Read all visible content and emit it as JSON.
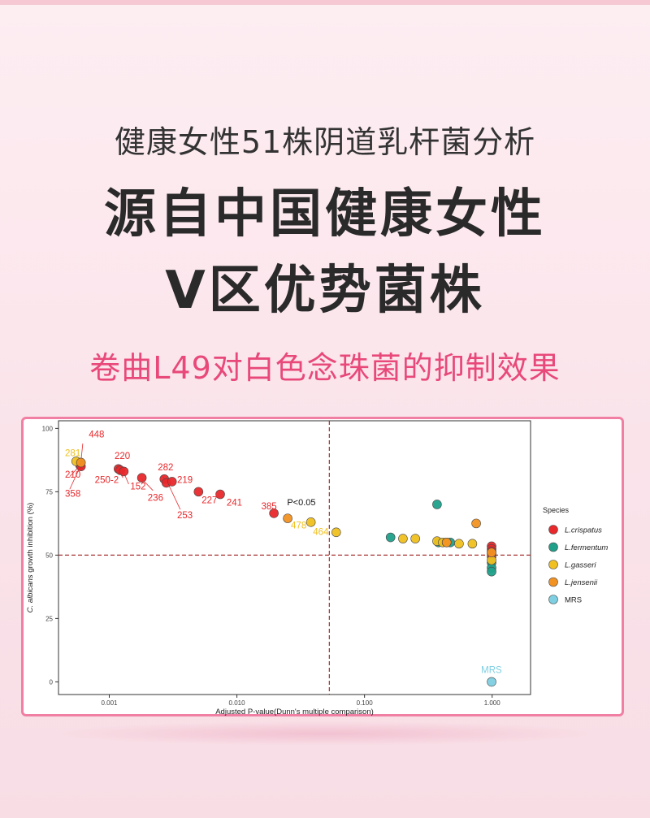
{
  "header": {
    "subtitle": "健康女性51株阴道乳杆菌分析",
    "headline_line1": "源自中国健康女性",
    "headline_line2": "V区优势菌株",
    "tagline": "卷曲L49对白色念珠菌的抑制效果"
  },
  "colors": {
    "L.crispatus": "#e8282b",
    "L.fermentum": "#1fa08a",
    "L.gasseri": "#f0c020",
    "L.jensenii": "#f29222",
    "MRS": "#7ecfe2",
    "accent": "#e8497a"
  },
  "chart_data": {
    "type": "scatter",
    "xscale": "log",
    "xlim": [
      0.0004,
      2.0
    ],
    "ylim": [
      -5,
      103
    ],
    "xlabel": "Adjusted P-value(Dunn's multiple comparison)",
    "ylabel_italic": "C. albicans",
    "ylabel_rest": " growth inhibition (%)",
    "xticks": [
      {
        "value": 0.001,
        "label": "0.001"
      },
      {
        "value": 0.01,
        "label": "0.010"
      },
      {
        "value": 0.1,
        "label": "0.100"
      },
      {
        "value": 1.0,
        "label": "1.000"
      }
    ],
    "yticks": [
      {
        "value": 0,
        "label": "0"
      },
      {
        "value": 25,
        "label": "25"
      },
      {
        "value": 50,
        "label": "50"
      },
      {
        "value": 75,
        "label": "75"
      },
      {
        "value": 100,
        "label": "100"
      }
    ],
    "hline": 50,
    "vline": 0.053,
    "annotation": "P<0.05",
    "legend_title": "Species",
    "legend_position": "right",
    "series": [
      {
        "name": "L.crispatus",
        "points": [
          {
            "x": 0.00059,
            "y": 86.5
          },
          {
            "x": 0.00059,
            "y": 85.5
          },
          {
            "x": 0.0006,
            "y": 85
          },
          {
            "x": 0.00118,
            "y": 84
          },
          {
            "x": 0.00122,
            "y": 83.5
          },
          {
            "x": 0.0013,
            "y": 83
          },
          {
            "x": 0.0018,
            "y": 80.5
          },
          {
            "x": 0.0027,
            "y": 80
          },
          {
            "x": 0.0028,
            "y": 78.5
          },
          {
            "x": 0.0031,
            "y": 79
          },
          {
            "x": 0.005,
            "y": 75
          },
          {
            "x": 0.0074,
            "y": 74
          },
          {
            "x": 0.0195,
            "y": 66.5
          },
          {
            "x": 0.99,
            "y": 53.5
          },
          {
            "x": 0.99,
            "y": 52.5
          },
          {
            "x": 0.99,
            "y": 51.5
          },
          {
            "x": 0.99,
            "y": 50.5
          },
          {
            "x": 0.99,
            "y": 49.5
          }
        ]
      },
      {
        "name": "L.fermentum",
        "points": [
          {
            "x": 0.16,
            "y": 57
          },
          {
            "x": 0.37,
            "y": 70
          },
          {
            "x": 0.38,
            "y": 55
          },
          {
            "x": 0.47,
            "y": 55
          },
          {
            "x": 0.99,
            "y": 47
          },
          {
            "x": 0.99,
            "y": 45
          },
          {
            "x": 0.99,
            "y": 43.5
          }
        ]
      },
      {
        "name": "L.gasseri",
        "points": [
          {
            "x": 0.00055,
            "y": 87
          },
          {
            "x": 0.038,
            "y": 63
          },
          {
            "x": 0.06,
            "y": 59
          },
          {
            "x": 0.2,
            "y": 56.5
          },
          {
            "x": 0.25,
            "y": 56.5
          },
          {
            "x": 0.37,
            "y": 55.5
          },
          {
            "x": 0.41,
            "y": 55
          },
          {
            "x": 0.44,
            "y": 55
          },
          {
            "x": 0.55,
            "y": 54.5
          },
          {
            "x": 0.7,
            "y": 54.5
          },
          {
            "x": 0.99,
            "y": 48
          }
        ]
      },
      {
        "name": "L.jensenii",
        "points": [
          {
            "x": 0.0006,
            "y": 86.5
          },
          {
            "x": 0.025,
            "y": 64.5
          },
          {
            "x": 0.44,
            "y": 55
          },
          {
            "x": 0.75,
            "y": 62.5
          },
          {
            "x": 0.99,
            "y": 51
          }
        ]
      },
      {
        "name": "MRS",
        "points": [
          {
            "x": 0.99,
            "y": 0
          }
        ]
      }
    ],
    "labels": [
      {
        "text": "448",
        "x": 0.00069,
        "y": 96.5,
        "color": "L.crispatus"
      },
      {
        "text": "281",
        "x": 0.00045,
        "y": 89,
        "color": "L.gasseri"
      },
      {
        "text": "210",
        "x": 0.00045,
        "y": 80.5,
        "color": "L.crispatus"
      },
      {
        "text": "358",
        "x": 0.00045,
        "y": 73,
        "color": "L.crispatus"
      },
      {
        "text": "220",
        "x": 0.0011,
        "y": 88,
        "color": "L.crispatus"
      },
      {
        "text": "250-2",
        "x": 0.00077,
        "y": 78.5,
        "color": "L.crispatus"
      },
      {
        "text": "152",
        "x": 0.00146,
        "y": 76,
        "color": "L.crispatus"
      },
      {
        "text": "282",
        "x": 0.0024,
        "y": 83.5,
        "color": "L.crispatus"
      },
      {
        "text": "219",
        "x": 0.0034,
        "y": 78.5,
        "color": "L.crispatus"
      },
      {
        "text": "236",
        "x": 0.002,
        "y": 71.5,
        "color": "L.crispatus"
      },
      {
        "text": "253",
        "x": 0.0034,
        "y": 64.5,
        "color": "L.crispatus"
      },
      {
        "text": "227",
        "x": 0.0053,
        "y": 70.5,
        "color": "L.crispatus"
      },
      {
        "text": "241",
        "x": 0.0083,
        "y": 69.5,
        "color": "L.crispatus"
      },
      {
        "text": "385",
        "x": 0.0155,
        "y": 68,
        "color": "L.crispatus"
      },
      {
        "text": "478",
        "x": 0.0265,
        "y": 60.5,
        "color": "L.gasseri"
      },
      {
        "text": "464",
        "x": 0.0395,
        "y": 58,
        "color": "L.gasseri"
      },
      {
        "text": "MRS",
        "x": 0.82,
        "y": 3.5,
        "color": "MRS"
      }
    ]
  }
}
